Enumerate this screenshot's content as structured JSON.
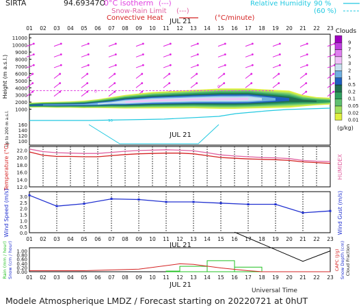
{
  "header": {
    "site": "SIRTA",
    "coords": "94.69347O",
    "isotherm_label": "0°C isotherm",
    "isotherm_units": "(---)",
    "snow_label": "Snow-Rain Limit",
    "snow_units": "(---)",
    "convective_label": "Convective Heat",
    "convective_units": "(°C/minute)",
    "rh_label": "Relative Humidity",
    "rh_90": "90 %",
    "rh_60": "(60 %)"
  },
  "date_label": "JUL 21",
  "ut_label": "Universal Time",
  "footer_text": "Modele Atmospherique LMDZ / Forecast starting on 20220721 at 0hUT",
  "hours": [
    "01",
    "02",
    "03",
    "04",
    "05",
    "06",
    "07",
    "08",
    "09",
    "10",
    "11",
    "12",
    "13",
    "14",
    "15",
    "16",
    "17",
    "18",
    "19",
    "20",
    "21",
    "22",
    "23"
  ],
  "colors": {
    "temp": "#d42020",
    "humidex": "#e060a0",
    "wind": "#2030d0",
    "gust": "#000000",
    "rain": "#20c020",
    "capc": "#d42020",
    "isotherm": "#e040e0",
    "rh": "#20c8e0"
  },
  "legend": {
    "title": "Clouds",
    "units": "(g/kg)",
    "levels": [
      "9",
      "7",
      "5",
      "3",
      "2",
      "1",
      "0.5",
      "0.2",
      "0.1",
      "0.05",
      "0.02",
      "0.01"
    ],
    "colors": [
      "#a000c0",
      "#c040e0",
      "#e080f0",
      "#f0c0f8",
      "#c8e0f0",
      "#70b0e0",
      "#2060c0",
      "#207050",
      "#30a060",
      "#60c070",
      "#a0e060",
      "#e0f040"
    ]
  },
  "chart_data": [
    {
      "type": "heatmap",
      "title": "Clouds",
      "ylabel": "Height (m a.s.l.)",
      "ylabel_lower": "Up to 200 m a.s.l.",
      "yticks": [
        "11000",
        "10000",
        "9000",
        "8000",
        "7000",
        "6000",
        "5000",
        "4000",
        "3000",
        "2000",
        "1000",
        "160",
        "140",
        "120",
        "100"
      ],
      "ylim": [
        0,
        11500
      ],
      "isotherm_height": 3600,
      "isotherm_marks": [
        "0",
        "0"
      ],
      "rh_label": "90",
      "cloud_x": [
        1,
        2,
        3,
        4,
        5,
        6,
        7,
        8,
        9,
        10,
        11,
        12,
        13,
        14,
        15,
        16,
        17,
        18,
        19,
        20,
        21,
        22,
        23
      ],
      "cloud_top": [
        1900,
        2000,
        2050,
        2100,
        2200,
        2400,
        2700,
        3000,
        3200,
        3400,
        3500,
        3600,
        3700,
        3800,
        3900,
        3900,
        3900,
        3800,
        3700,
        3600,
        3000,
        2700,
        2600
      ],
      "cloud_base": [
        1200,
        1200,
        1150,
        1150,
        1100,
        1100,
        1050,
        1000,
        1000,
        1000,
        1000,
        1000,
        1000,
        950,
        900,
        900,
        950,
        1000,
        1050,
        1100,
        1300,
        1500,
        1600
      ],
      "max_class": [
        5,
        6,
        6,
        6,
        6,
        7,
        7,
        8,
        8,
        8,
        8,
        8,
        8,
        8,
        8,
        8,
        8,
        7,
        6,
        5,
        4,
        4,
        3
      ]
    },
    {
      "type": "line",
      "ylabel": "Temperature (°C)",
      "ylabel_right": "HUMIDEX",
      "yticks": [
        "22.0",
        "20.0",
        "18.0",
        "16.0",
        "14.0",
        "12.0"
      ],
      "ylim": [
        12,
        23
      ],
      "x": [
        1,
        2,
        3,
        4,
        5,
        6,
        7,
        8,
        9,
        10,
        11,
        12,
        13,
        14,
        15,
        16,
        17,
        18,
        19,
        20,
        21,
        22,
        23
      ],
      "series": [
        {
          "key": "temp",
          "values": [
            21.5,
            20.6,
            20.3,
            20.3,
            20.2,
            20.2,
            20.5,
            20.8,
            21.0,
            21.1,
            21.2,
            21.2,
            21.0,
            20.5,
            20.0,
            19.8,
            19.6,
            19.5,
            19.4,
            19.2,
            18.8,
            18.6,
            18.4
          ]
        },
        {
          "key": "humidex",
          "values": [
            22.3,
            21.6,
            21.3,
            21.2,
            21.1,
            21.1,
            21.4,
            21.7,
            21.9,
            22.0,
            22.1,
            22.0,
            21.8,
            21.3,
            20.7,
            20.4,
            20.2,
            20.0,
            19.9,
            19.7,
            19.2,
            19.0,
            18.9
          ]
        }
      ]
    },
    {
      "type": "line",
      "ylabel": "Wind Speed (m/s)",
      "ylabel_right": "Wind Gust (m/s)",
      "yticks": [
        "3.0",
        "2.5",
        "2.0",
        "1.5",
        "1.0",
        "0.5",
        "0.0"
      ],
      "ylim": [
        0,
        3.4
      ],
      "x": [
        1,
        3,
        5,
        7,
        9,
        11,
        13,
        15,
        17,
        19,
        21,
        23
      ],
      "series": [
        {
          "key": "wind",
          "values": [
            3.1,
            2.2,
            2.4,
            2.8,
            2.75,
            2.55,
            2.55,
            2.45,
            2.35,
            2.35,
            1.65,
            1.8
          ]
        }
      ]
    },
    {
      "type": "bar",
      "ylabel": "Rain (mm / hour)",
      "ylabel2": "Snow (cm / hour)",
      "ylabel_right": "CAPC (J/g)",
      "ylabel_right2": "Snow Depth (cm)",
      "ylabel_right3": "Cloud Fraction",
      "yticks": [
        "1.00",
        "0.80",
        "0.60",
        "0.40",
        "0.20",
        "0.00"
      ],
      "ylim": [
        0,
        1.15
      ],
      "rain_bars": [
        {
          "start": 11,
          "end": 12,
          "value": 0.03
        },
        {
          "start": 12,
          "end": 14,
          "value": 0.26
        },
        {
          "start": 14,
          "end": 16,
          "value": 0.53
        },
        {
          "start": 16,
          "end": 18,
          "value": 0.22
        }
      ],
      "capc_x": [
        1,
        5,
        9,
        12,
        13,
        15,
        17,
        18,
        19,
        23
      ],
      "capc_values": [
        0.05,
        0.05,
        0.12,
        0.38,
        0.35,
        0.18,
        0.05,
        0.0,
        0.0,
        0.0
      ],
      "cloud_fraction_x": [
        16,
        21,
        23
      ],
      "cloud_fraction_values": [
        1.9,
        0.5,
        1.0
      ]
    }
  ]
}
